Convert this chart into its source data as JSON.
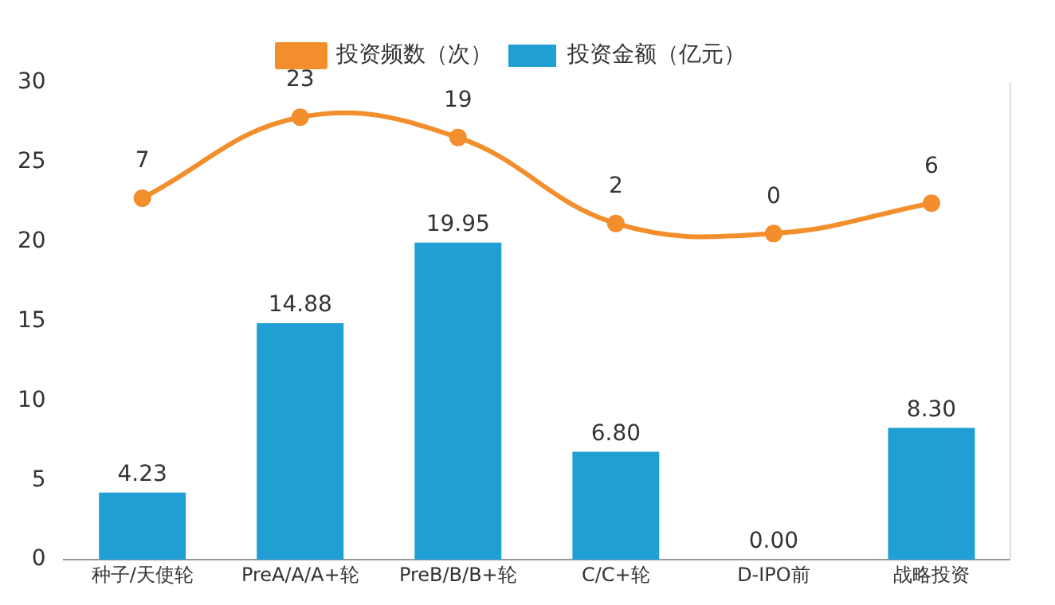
{
  "chart_data": {
    "type": "bar",
    "categories": [
      "种子/天使轮",
      "PreA/A/A+轮",
      "PreB/B/B+轮",
      "C/C+轮",
      "D-IPO前",
      "战略投资"
    ],
    "series": [
      {
        "name": "投资频数（次）",
        "type": "line",
        "axis": "y2",
        "color": "#f28e2b",
        "values": [
          7,
          23,
          19,
          2,
          0,
          6
        ],
        "value_labels": [
          "7",
          "23",
          "19",
          "2",
          "0",
          "6"
        ]
      },
      {
        "name": "投资金额（亿元）",
        "color": "#1f9fd4",
        "values": [
          4.23,
          14.88,
          19.95,
          6.8,
          0,
          8.3
        ],
        "value_labels": [
          "4.23",
          "14.88",
          "19.95",
          "6.80",
          "0.00",
          "8.30"
        ]
      }
    ],
    "ylim": [
      0,
      30
    ],
    "yticks": [
      0,
      5,
      10,
      15,
      20,
      25,
      30
    ],
    "y2lim": [
      -64.5,
      29.8
    ],
    "grid": false,
    "legend": "top",
    "marker": "circle",
    "line_style": "solid"
  }
}
